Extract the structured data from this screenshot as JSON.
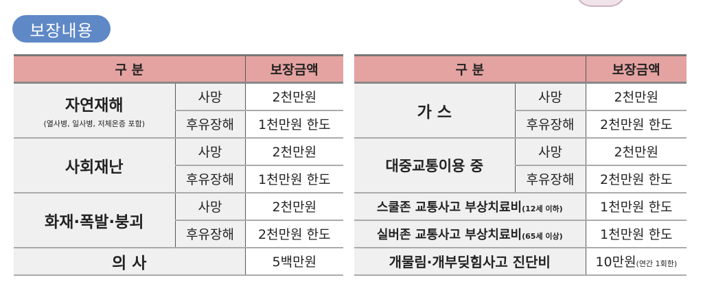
{
  "title": "보장내용",
  "header": {
    "category": "구 분",
    "amount": "보장금액"
  },
  "left_table": {
    "groups": [
      {
        "label": "자연재해",
        "note": "(열사병, 일사병, 저체온증 포함)",
        "rows": [
          {
            "type": "사망",
            "amount": "2천만원"
          },
          {
            "type": "후유장해",
            "amount": "1천만원 한도"
          }
        ]
      },
      {
        "label": "사회재난",
        "rows": [
          {
            "type": "사망",
            "amount": "2천만원"
          },
          {
            "type": "후유장해",
            "amount": "1천만원 한도"
          }
        ]
      },
      {
        "label": "화재·폭발·붕괴",
        "rows": [
          {
            "type": "사망",
            "amount": "2천만원"
          },
          {
            "type": "후유장해",
            "amount": "2천만원 한도"
          }
        ]
      }
    ],
    "single": {
      "label": "의 사",
      "amount": "5백만원"
    }
  },
  "right_table": {
    "groups": [
      {
        "label": "가 스",
        "rows": [
          {
            "type": "사망",
            "amount": "2천만원"
          },
          {
            "type": "후유장해",
            "amount": "2천만원 한도"
          }
        ]
      },
      {
        "label": "대중교통이용 중",
        "rows": [
          {
            "type": "사망",
            "amount": "2천만원"
          },
          {
            "type": "후유장해",
            "amount": "2천만원 한도"
          }
        ]
      }
    ],
    "singles": [
      {
        "label": "스쿨존 교통사고 부상치료비",
        "note": "(12세 이하)",
        "amount": "1천만원 한도"
      },
      {
        "label": "실버존 교통사고 부상치료비",
        "note": "(65세 이상)",
        "amount": "1천만원 한도"
      },
      {
        "label": "개물림·개부딪힘사고 진단비",
        "amount": "10만원",
        "amount_note": "(연간 1회한)"
      }
    ]
  }
}
